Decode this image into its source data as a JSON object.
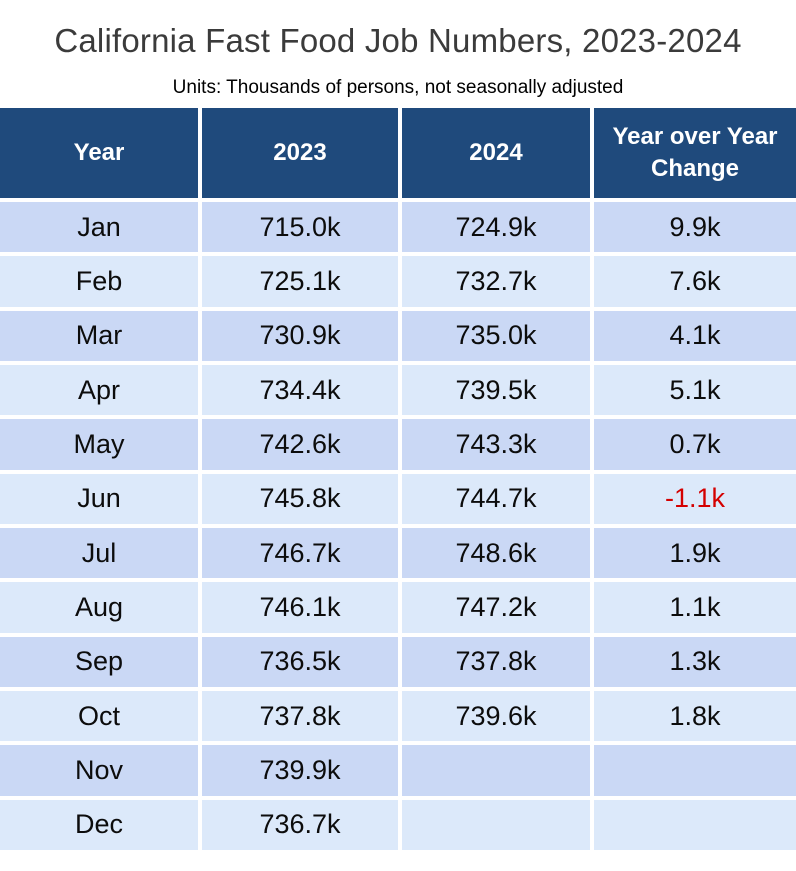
{
  "title": "California Fast Food Job Numbers, 2023-2024",
  "subtitle": "Units: Thousands of persons, not seasonally adjusted",
  "colors": {
    "header_bg": "#1f4a7c",
    "row_dark": "#cad8f5",
    "row_light": "#dce9fa",
    "negative_value": "#d40000",
    "title_text": "#3b3b3b"
  },
  "chart_data": {
    "type": "table",
    "title": "California Fast Food Job Numbers, 2023-2024",
    "subtitle": "Units: Thousands of persons, not seasonally adjusted",
    "units": "Thousands of persons, not seasonally adjusted",
    "columns": [
      "Year",
      "2023",
      "2024",
      "Year over Year Change"
    ],
    "rows": [
      {
        "month": "Jan",
        "y2023": "715.0k",
        "y2024": "724.9k",
        "change": "9.9k",
        "negative": false
      },
      {
        "month": "Feb",
        "y2023": "725.1k",
        "y2024": "732.7k",
        "change": "7.6k",
        "negative": false
      },
      {
        "month": "Mar",
        "y2023": "730.9k",
        "y2024": "735.0k",
        "change": "4.1k",
        "negative": false
      },
      {
        "month": "Apr",
        "y2023": "734.4k",
        "y2024": "739.5k",
        "change": "5.1k",
        "negative": false
      },
      {
        "month": "May",
        "y2023": "742.6k",
        "y2024": "743.3k",
        "change": "0.7k",
        "negative": false
      },
      {
        "month": "Jun",
        "y2023": "745.8k",
        "y2024": "744.7k",
        "change": "-1.1k",
        "negative": true
      },
      {
        "month": "Jul",
        "y2023": "746.7k",
        "y2024": "748.6k",
        "change": "1.9k",
        "negative": false
      },
      {
        "month": "Aug",
        "y2023": "746.1k",
        "y2024": "747.2k",
        "change": "1.1k",
        "negative": false
      },
      {
        "month": "Sep",
        "y2023": "736.5k",
        "y2024": "737.8k",
        "change": "1.3k",
        "negative": false
      },
      {
        "month": "Oct",
        "y2023": "737.8k",
        "y2024": "739.6k",
        "change": "1.8k",
        "negative": false
      },
      {
        "month": "Nov",
        "y2023": "739.9k",
        "y2024": "",
        "change": "",
        "negative": false
      },
      {
        "month": "Dec",
        "y2023": "736.7k",
        "y2024": "",
        "change": "",
        "negative": false
      }
    ]
  }
}
